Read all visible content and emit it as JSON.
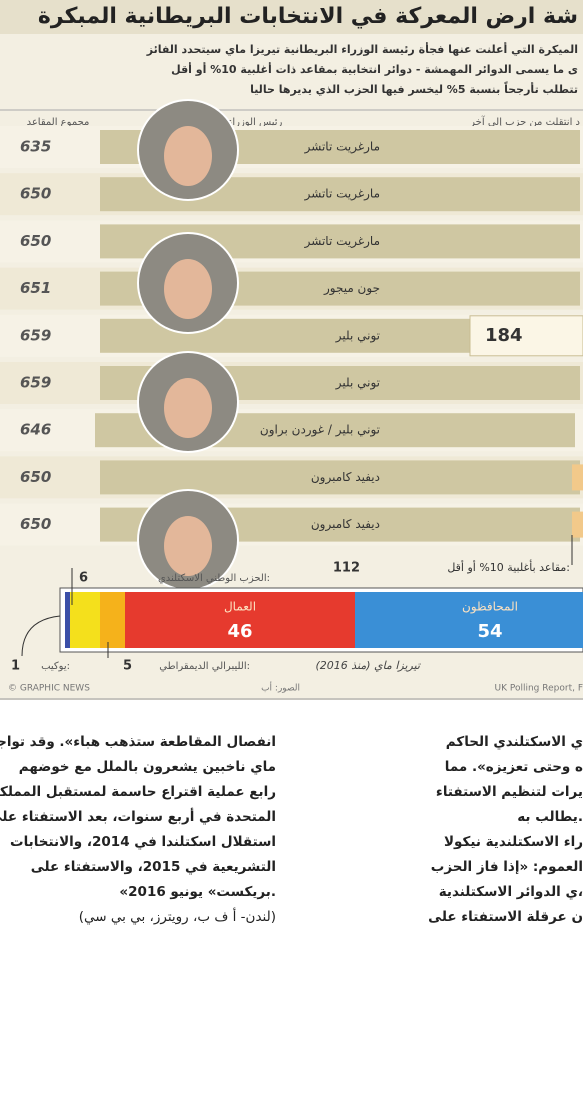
{
  "header": {
    "title": "شة ارض المعركة في الانتخابات البريطانية المبكرة",
    "subtitle": [
      "الميكرة التي أعلنت عنها فجأة رئيسة الوزراء البريطانية تيريزا ماي سيتحدد الفائز",
      "ى ما يسمى الدوائر المهمشة - دوائر انتخابية بمقاعد ذات أغلبية 10% أو أقل",
      "تتطلب تأرجحاً بنسبة 5% ليخسر فيها الحزب الذي يديرها حاليا"
    ]
  },
  "columns": {
    "moved": "د انتقلت من حزب إلى آخر",
    "pm": "رئيس الوزراء",
    "total": "مجموع المقاعد"
  },
  "rows": [
    {
      "total": 635,
      "pm": "مارغريت تاتشر"
    },
    {
      "total": 650,
      "pm": "مارغريت تاتشر"
    },
    {
      "total": 650,
      "pm": "مارغريت تاتشر"
    },
    {
      "total": 651,
      "pm": "جون ميجور"
    },
    {
      "total": 659,
      "pm": "توني بلير",
      "badge": 184
    },
    {
      "total": 659,
      "pm": "توني بلير"
    },
    {
      "total": 646,
      "pm": "توني بلير / غوردن براون"
    },
    {
      "total": 650,
      "pm": "ديفيد كامبرون"
    },
    {
      "total": 650,
      "pm": "ديفيد كامبرون"
    }
  ],
  "marginal": {
    "label": "مقاعد بأغلبية 10% أو أقل:",
    "value": 112
  },
  "seats": {
    "caption": "تيريزا ماي (منذ 2016)",
    "parties": [
      {
        "name": "يوكيب:",
        "value": 1,
        "color": "#3b4fa8"
      },
      {
        "name": "الحزب الوطني الاسكتلندي:",
        "value": 6,
        "color": "#f4e01c"
      },
      {
        "name": "الليبرالي الديمقراطي:",
        "value": 5,
        "color": "#f5b21b"
      },
      {
        "name": "العمال",
        "value": 46,
        "color": "#e63a2e"
      },
      {
        "name": "المحافظون",
        "value": 54,
        "color": "#3a8fd6"
      }
    ]
  },
  "footer": {
    "credit": "© GRAPHIC NEWS",
    "photos": "الصور: أب",
    "source": "UK Polling Report, F"
  },
  "article": {
    "left": [
      "انفصال المقاطعة ستذهب هباء». وقد تواجه",
      "ماي ناخبين يشعرون بالملل مع خوضهم",
      "رابع عملية اقتراع حاسمة لمستقبل المملكة",
      "المتحدة في أربع سنوات، بعد الاستفتاء على",
      "استقلال اسكتلندا في 2014، والانتخابات",
      "التشريعية في 2015، والاستفتاء على",
      "«بريكست» يونيو 2016.",
      "(لندن- أ ف ب، رويترز، بي بي سي)"
    ],
    "right": [
      "ي الاسكتلندي الحاكم",
      "ه وحتى تعزيزه». مما",
      "يرات لتنظيم الاستفتاء",
      "يطالب به.",
      "راء الاسكتلندية نيكولا",
      "العموم: «إذا فاز الحزب",
      "ي الدوائر الاسكتلندية،",
      "ن عرقلة الاستفتاء على"
    ]
  }
}
